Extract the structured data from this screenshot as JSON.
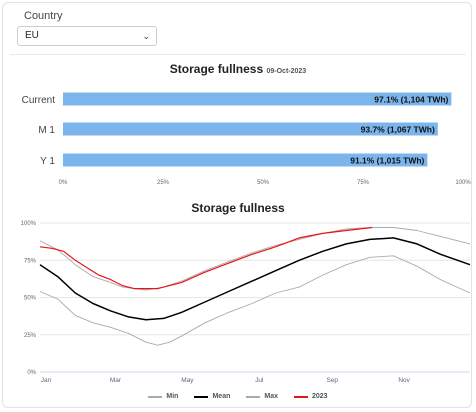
{
  "filter": {
    "label": "Country",
    "selected": "EU"
  },
  "icons": {
    "dropdown": "chevron-down-icon"
  },
  "chart_data": [
    {
      "type": "bar",
      "orientation": "horizontal",
      "title": "Storage fullness",
      "subtitle": "09-Oct-2023",
      "categories": [
        "Current",
        "M 1",
        "Y 1"
      ],
      "values": [
        97.1,
        93.7,
        91.1
      ],
      "data_labels": [
        "97.1% (1,104 TWh)",
        "93.7% (1,067 TWh)",
        "91.1% (1,015 TWh)"
      ],
      "xlim": [
        0,
        100
      ],
      "x_ticks": [
        "0%",
        "25%",
        "50%",
        "75%",
        "100%"
      ],
      "color": "#7cb5ec"
    },
    {
      "type": "line",
      "title": "Storage fullness",
      "x_labels": [
        "Jan",
        "Mar",
        "May",
        "Jul",
        "Sep",
        "Nov"
      ],
      "y_ticks": [
        "0%",
        "25%",
        "50%",
        "75%",
        "100%"
      ],
      "ylim": [
        0,
        100
      ],
      "x_range_days": [
        0,
        365
      ],
      "grid": true,
      "legend_position": "bottom",
      "series": [
        {
          "name": "Min",
          "color": "#aaaaaa",
          "x": [
            0,
            15,
            30,
            45,
            60,
            75,
            90,
            100,
            110,
            120,
            140,
            160,
            180,
            200,
            220,
            240,
            260,
            280,
            300,
            320,
            340,
            365
          ],
          "y": [
            54,
            49,
            38,
            33,
            30,
            26,
            20,
            18,
            20,
            24,
            33,
            40,
            46,
            53,
            57,
            65,
            72,
            77,
            78,
            71,
            62,
            53
          ]
        },
        {
          "name": "Mean",
          "color": "#000000",
          "x": [
            0,
            15,
            30,
            45,
            60,
            75,
            90,
            105,
            120,
            140,
            160,
            180,
            200,
            220,
            240,
            260,
            280,
            300,
            320,
            340,
            365
          ],
          "y": [
            72,
            64,
            53,
            46,
            41,
            37,
            35,
            36,
            40,
            47,
            54,
            61,
            68,
            75,
            81,
            86,
            89,
            90,
            86,
            79,
            72
          ]
        },
        {
          "name": "Max",
          "color": "#aaaaaa",
          "x": [
            0,
            15,
            30,
            45,
            60,
            70,
            80,
            90,
            105,
            120,
            140,
            160,
            180,
            200,
            220,
            240,
            260,
            280,
            300,
            320,
            340,
            365
          ],
          "y": [
            88,
            82,
            72,
            64,
            60,
            57,
            56,
            55,
            57,
            61,
            68,
            74,
            80,
            85,
            89,
            93,
            96,
            97,
            97,
            95,
            91,
            86
          ]
        },
        {
          "name": "2023",
          "color": "#e8141b",
          "x": [
            0,
            10,
            20,
            30,
            40,
            50,
            60,
            70,
            80,
            90,
            100,
            110,
            120,
            140,
            160,
            180,
            200,
            220,
            240,
            260,
            282
          ],
          "y": [
            84,
            83,
            81,
            75,
            70,
            65,
            62,
            58,
            56,
            56,
            56,
            58,
            60,
            67,
            73,
            79,
            84,
            90,
            93,
            95,
            97
          ]
        }
      ]
    }
  ]
}
